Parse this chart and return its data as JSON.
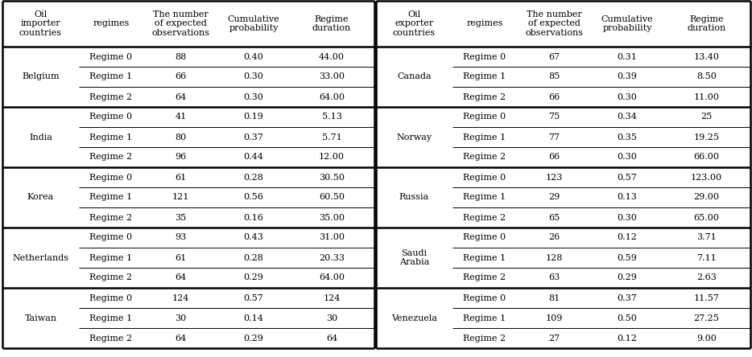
{
  "left_headers": [
    "Oil\nimporter\ncountries",
    "regimes",
    "The number\nof expected\nobservations",
    "Cumulative\nprobability",
    "Regime\nduration"
  ],
  "right_headers": [
    "Oil\nexporter\ncountries",
    "regimes",
    "The number\nof expected\nobservations",
    "Cumulative\nprobability",
    "Regime\nduration"
  ],
  "left_countries": [
    "Belgium",
    "India",
    "Korea",
    "Netherlands",
    "Taiwan"
  ],
  "right_countries": [
    "Canada",
    "Norway",
    "Russia",
    "Saudi\nArabia",
    "Venezuela"
  ],
  "left_data": [
    [
      [
        "Regime 0",
        "88",
        "0.40",
        "44.00"
      ],
      [
        "Regime 1",
        "66",
        "0.30",
        "33.00"
      ],
      [
        "Regime 2",
        "64",
        "0.30",
        "64.00"
      ]
    ],
    [
      [
        "Regime 0",
        "41",
        "0.19",
        "5.13"
      ],
      [
        "Regime 1",
        "80",
        "0.37",
        "5.71"
      ],
      [
        "Regime 2",
        "96",
        "0.44",
        "12.00"
      ]
    ],
    [
      [
        "Regime 0",
        "61",
        "0.28",
        "30.50"
      ],
      [
        "Regime 1",
        "121",
        "0.56",
        "60.50"
      ],
      [
        "Regime 2",
        "35",
        "0.16",
        "35.00"
      ]
    ],
    [
      [
        "Regime 0",
        "93",
        "0.43",
        "31.00"
      ],
      [
        "Regime 1",
        "61",
        "0.28",
        "20.33"
      ],
      [
        "Regime 2",
        "64",
        "0.29",
        "64.00"
      ]
    ],
    [
      [
        "Regime 0",
        "124",
        "0.57",
        "124"
      ],
      [
        "Regime 1",
        "30",
        "0.14",
        "30"
      ],
      [
        "Regime 2",
        "64",
        "0.29",
        "64"
      ]
    ]
  ],
  "right_data": [
    [
      [
        "Regime 0",
        "67",
        "0.31",
        "13.40"
      ],
      [
        "Regime 1",
        "85",
        "0.39",
        "8.50"
      ],
      [
        "Regime 2",
        "66",
        "0.30",
        "11.00"
      ]
    ],
    [
      [
        "Regime 0",
        "75",
        "0.34",
        "25"
      ],
      [
        "Regime 1",
        "77",
        "0.35",
        "19.25"
      ],
      [
        "Regime 2",
        "66",
        "0.30",
        "66.00"
      ]
    ],
    [
      [
        "Regime 0",
        "123",
        "0.57",
        "123.00"
      ],
      [
        "Regime 1",
        "29",
        "0.13",
        "29.00"
      ],
      [
        "Regime 2",
        "65",
        "0.30",
        "65.00"
      ]
    ],
    [
      [
        "Regime 0",
        "26",
        "0.12",
        "3.71"
      ],
      [
        "Regime 1",
        "128",
        "0.59",
        "7.11"
      ],
      [
        "Regime 2",
        "63",
        "0.29",
        "2.63"
      ]
    ],
    [
      [
        "Regime 0",
        "81",
        "0.37",
        "11.57"
      ],
      [
        "Regime 1",
        "109",
        "0.50",
        "27.25"
      ],
      [
        "Regime 2",
        "27",
        "0.12",
        "9.00"
      ]
    ]
  ],
  "bg_color": "#ffffff",
  "font_size": 8.0,
  "header_font_size": 8.0
}
